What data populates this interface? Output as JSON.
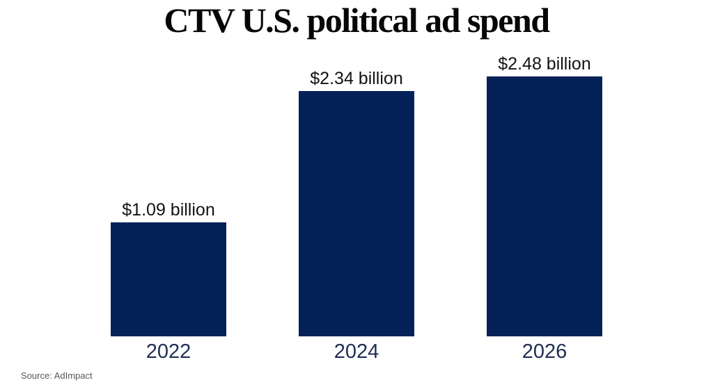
{
  "title": "CTV U.S. political ad spend",
  "source": "Source: AdImpact",
  "colors": {
    "background": "#ffffff",
    "bar": "#042258",
    "title_text": "#060606",
    "value_label_text": "#131313",
    "year_label_text": "#1f2d52",
    "source_text": "#575757"
  },
  "chart_data": {
    "type": "bar",
    "title": "CTV U.S. political ad spend",
    "categories": [
      "2022",
      "2024",
      "2026"
    ],
    "values": [
      1.09,
      2.34,
      2.48
    ],
    "value_labels": [
      "$1.09 billion",
      "$2.34 billion",
      "$2.48 billion"
    ],
    "unit": "billion USD",
    "xlabel": "",
    "ylabel": "",
    "ylim": [
      0,
      2.6
    ],
    "grid": false,
    "legend": "none",
    "bar_color": "#042258",
    "source": "Source: AdImpact"
  }
}
